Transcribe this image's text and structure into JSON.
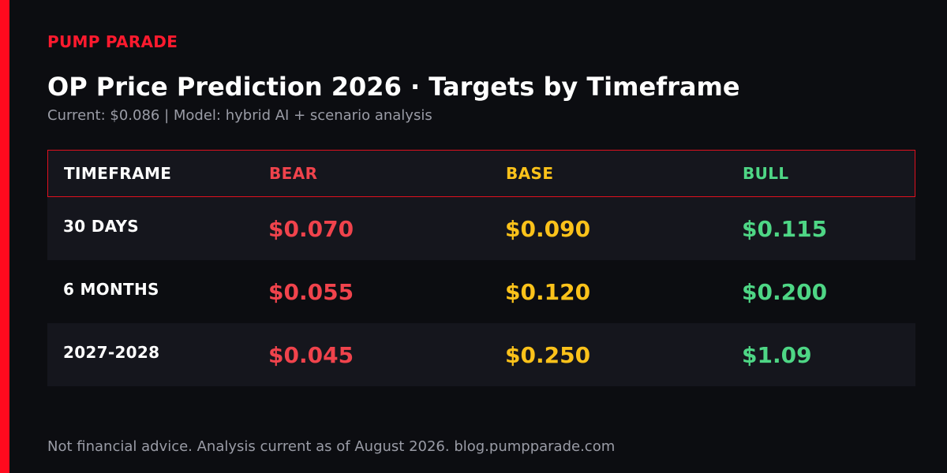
{
  "brand": "PUMP PARADE",
  "title": "OP Price Prediction 2026 · Targets by Timeframe",
  "subtitle": "Current: $0.086 | Model: hybrid AI + scenario analysis",
  "colors": {
    "accent": "#ff0a1e",
    "bear": "#f0434c",
    "base": "#fbc21a",
    "bull": "#4ed685",
    "background": "#0c0d11"
  },
  "table": {
    "headers": {
      "timeframe": "TIMEFRAME",
      "bear": "BEAR",
      "base": "BASE",
      "bull": "BULL"
    },
    "rows": [
      {
        "timeframe": "30 DAYS",
        "bear": "$0.070",
        "base": "$0.090",
        "bull": "$0.115"
      },
      {
        "timeframe": "6 MONTHS",
        "bear": "$0.055",
        "base": "$0.120",
        "bull": "$0.200"
      },
      {
        "timeframe": "2027-2028",
        "bear": "$0.045",
        "base": "$0.250",
        "bull": "$1.09"
      }
    ]
  },
  "footer": "Not financial advice. Analysis current as of August 2026. blog.pumpparade.com"
}
